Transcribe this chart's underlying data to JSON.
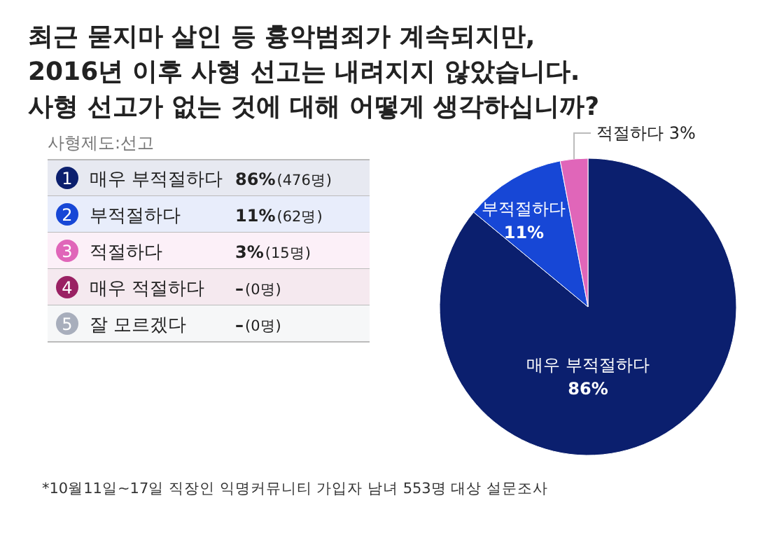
{
  "chart_data": {
    "type": "pie",
    "title": "최근 묻지마 살인 등 흉악범죄가 계속되지만,\n2016년 이후 사형 선고는 내려지지 않았습니다.\n사형 선고가 없는 것에 대해 어떻게 생각하십니까?",
    "subtitle": "사형제도:선고",
    "categories": [
      "매우 부적절하다",
      "부적절하다",
      "적절하다",
      "매우 적절하다",
      "잘 모르겠다"
    ],
    "values": [
      86,
      11,
      3,
      0,
      0
    ],
    "colors": [
      "#0b1f6e",
      "#1747d6",
      "#e066b9",
      "#9a2163",
      "#a8aebc"
    ],
    "value_labels": [
      "86%",
      "11%",
      "3%",
      "–",
      "–"
    ],
    "legend": "left",
    "annotations": [
      "*10월11일~17일 직장인 익명커뮤니티 가입자 남녀 553명 대상 설문조사",
      "(476명)",
      "(62명)",
      "(15명)",
      "(0명)",
      "(0명)",
      "1",
      "2",
      "3",
      "4",
      "5"
    ]
  }
}
